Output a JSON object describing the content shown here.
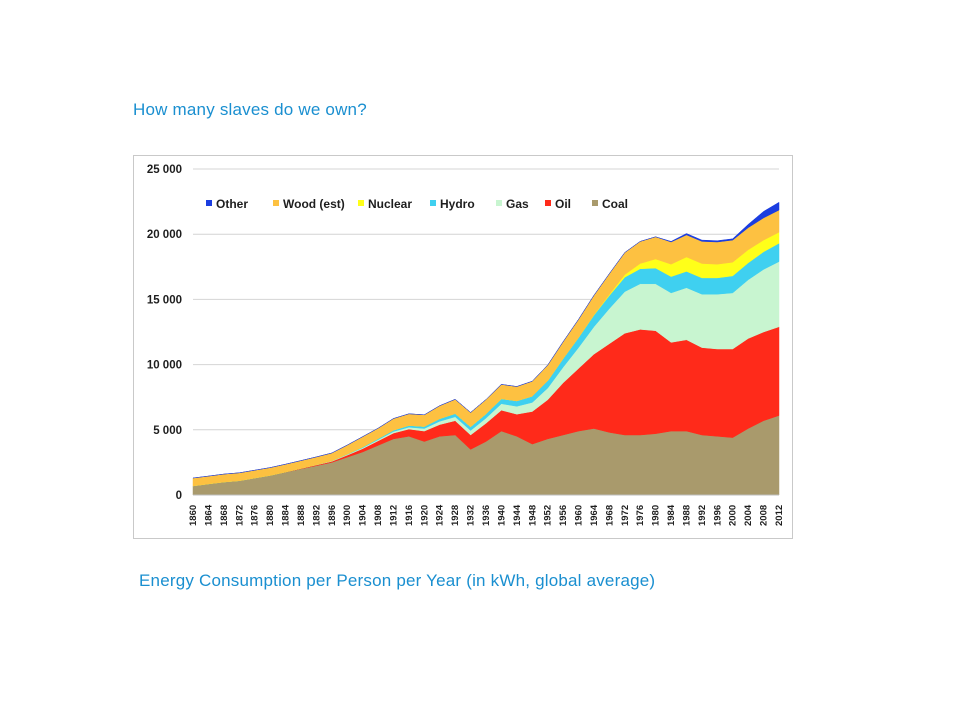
{
  "page": {
    "heading": "How many slaves do we own?",
    "caption": "Energy Consumption per Person per Year (in kWh, global average)"
  },
  "chart_data": {
    "type": "area",
    "stacked": true,
    "title": "",
    "xlabel": "",
    "ylabel": "",
    "ylim": [
      0,
      25000
    ],
    "y_ticks": [
      0,
      5000,
      10000,
      15000,
      20000,
      25000
    ],
    "y_tick_labels": [
      "0",
      "5 000",
      "10 000",
      "15 000",
      "20 000",
      "25 000"
    ],
    "x_tick_labels": [
      "1860",
      "1864",
      "1868",
      "1872",
      "1876",
      "1880",
      "1884",
      "1888",
      "1892",
      "1896",
      "1900",
      "1904",
      "1908",
      "1912",
      "1916",
      "1920",
      "1924",
      "1928",
      "1932",
      "1936",
      "1940",
      "1944",
      "1948",
      "1952",
      "1956",
      "1960",
      "1964",
      "1968",
      "1972",
      "1976",
      "1980",
      "1984",
      "1988",
      "1992",
      "1996",
      "2000",
      "2004",
      "2008",
      "2012"
    ],
    "legend_position": "top-left",
    "grid": "horizontal",
    "x": [
      1860,
      1864,
      1868,
      1872,
      1876,
      1880,
      1884,
      1888,
      1892,
      1896,
      1900,
      1904,
      1908,
      1912,
      1916,
      1920,
      1924,
      1928,
      1932,
      1936,
      1940,
      1944,
      1948,
      1952,
      1956,
      1960,
      1964,
      1968,
      1972,
      1976,
      1980,
      1984,
      1988,
      1992,
      1996,
      2000,
      2004,
      2008,
      2012
    ],
    "series": [
      {
        "name": "Coal",
        "color": "#a99a6c",
        "values": [
          700,
          850,
          1000,
          1100,
          1300,
          1500,
          1750,
          2000,
          2250,
          2500,
          2900,
          3300,
          3800,
          4300,
          4500,
          4100,
          4500,
          4600,
          3500,
          4100,
          4900,
          4500,
          3900,
          4300,
          4600,
          4900,
          5100,
          4800,
          4600,
          4600,
          4700,
          4900,
          4900,
          4600,
          4500,
          4400,
          5100,
          5700,
          6100
        ]
      },
      {
        "name": "Oil",
        "color": "#ff2a1a",
        "values": [
          0,
          0,
          0,
          0,
          0,
          0,
          10,
          30,
          50,
          80,
          150,
          250,
          350,
          450,
          550,
          800,
          900,
          1100,
          1100,
          1400,
          1600,
          1700,
          2500,
          3000,
          4000,
          4800,
          5700,
          6800,
          7800,
          8100,
          7900,
          6800,
          7000,
          6700,
          6700,
          6800,
          6900,
          6800,
          6800
        ]
      },
      {
        "name": "Gas",
        "color": "#c8f5d0",
        "values": [
          0,
          0,
          0,
          0,
          0,
          0,
          0,
          10,
          20,
          30,
          50,
          70,
          90,
          120,
          150,
          200,
          250,
          300,
          350,
          400,
          500,
          600,
          700,
          900,
          1200,
          1600,
          2100,
          2700,
          3200,
          3500,
          3600,
          3800,
          4000,
          4100,
          4200,
          4300,
          4500,
          4800,
          5000
        ]
      },
      {
        "name": "Hydro",
        "color": "#3fd0f0",
        "values": [
          0,
          0,
          0,
          0,
          0,
          0,
          0,
          0,
          0,
          10,
          30,
          50,
          80,
          100,
          130,
          150,
          200,
          240,
          280,
          320,
          380,
          420,
          480,
          560,
          650,
          760,
          880,
          1000,
          1100,
          1150,
          1200,
          1250,
          1250,
          1250,
          1250,
          1300,
          1300,
          1350,
          1400
        ]
      },
      {
        "name": "Nuclear",
        "color": "#ffff19",
        "values": [
          0,
          0,
          0,
          0,
          0,
          0,
          0,
          0,
          0,
          0,
          0,
          0,
          0,
          0,
          0,
          0,
          0,
          0,
          0,
          0,
          0,
          0,
          0,
          0,
          0,
          10,
          30,
          80,
          200,
          400,
          700,
          950,
          1100,
          1100,
          1050,
          1050,
          1000,
          900,
          850
        ]
      },
      {
        "name": "Wood (est)",
        "color": "#fdc141",
        "values": [
          600,
          600,
          600,
          600,
          600,
          600,
          600,
          600,
          600,
          600,
          700,
          800,
          800,
          900,
          900,
          900,
          1000,
          1100,
          1100,
          1100,
          1100,
          1100,
          1150,
          1200,
          1300,
          1400,
          1500,
          1600,
          1700,
          1700,
          1700,
          1700,
          1700,
          1700,
          1700,
          1700,
          1700,
          1700,
          1700
        ]
      },
      {
        "name": "Other",
        "color": "#1b3de0",
        "values": [
          0,
          0,
          0,
          0,
          0,
          0,
          0,
          0,
          0,
          0,
          0,
          0,
          0,
          0,
          0,
          0,
          0,
          0,
          0,
          0,
          0,
          0,
          0,
          0,
          0,
          0,
          0,
          0,
          0,
          0,
          0,
          50,
          100,
          100,
          100,
          100,
          250,
          500,
          600
        ]
      }
    ]
  }
}
